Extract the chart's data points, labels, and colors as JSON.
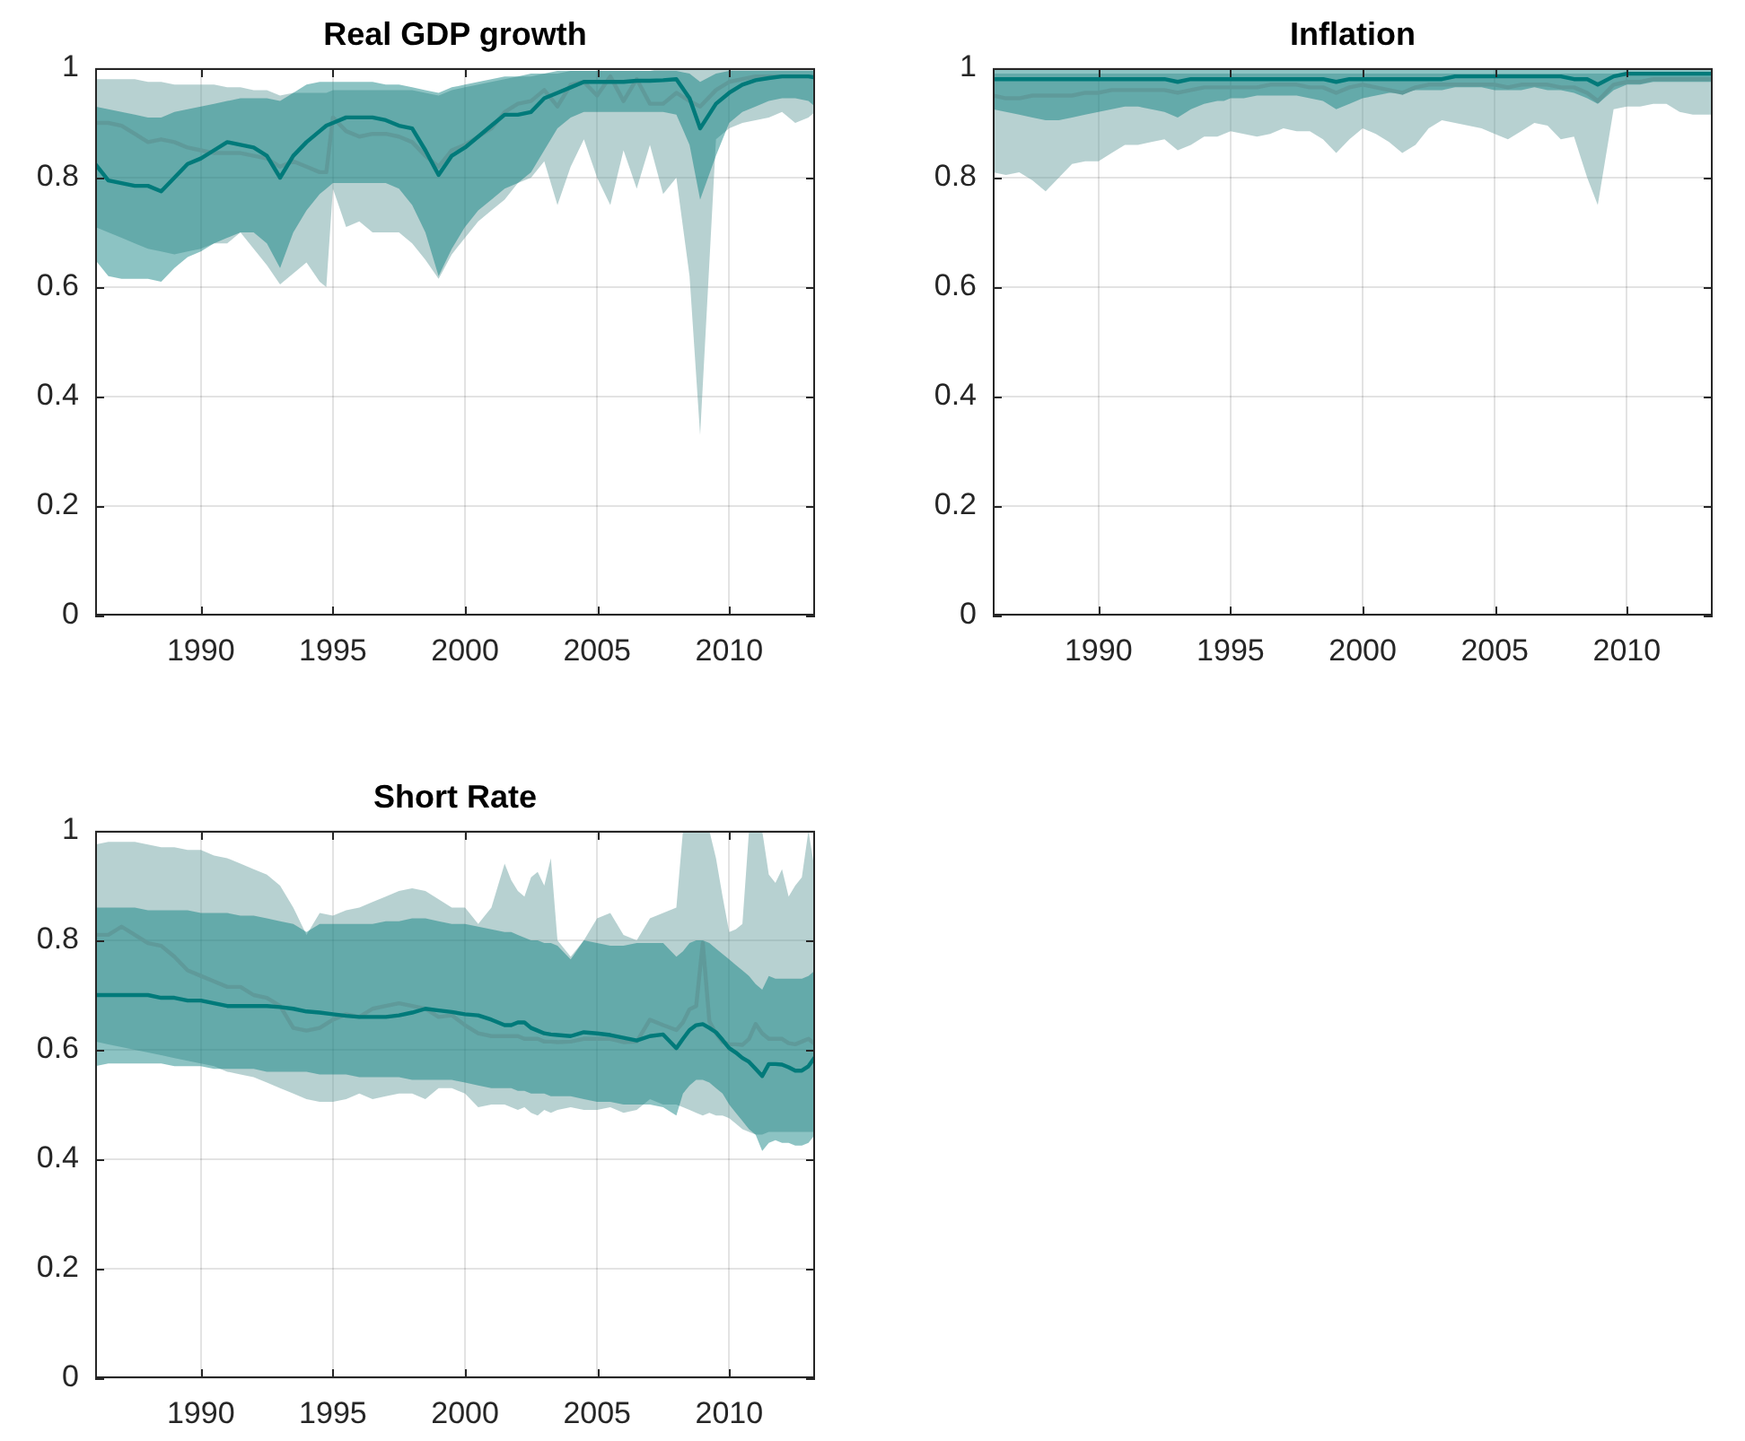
{
  "chart_data": [
    {
      "type": "line",
      "title": "Real GDP growth",
      "xlim": [
        1986,
        2013.25
      ],
      "xticks": [
        1990,
        1995,
        2000,
        2005,
        2010
      ],
      "ylim": [
        0,
        1
      ],
      "yticks": [
        0,
        0.2,
        0.4,
        0.6,
        0.8,
        1
      ],
      "grid": true,
      "x": [
        1986,
        1986.5,
        1987,
        1987.5,
        1988,
        1988.5,
        1989,
        1989.5,
        1990,
        1990.5,
        1991,
        1991.5,
        1992,
        1992.5,
        1993,
        1993.5,
        1994,
        1994.5,
        1994.75,
        1995,
        1995.5,
        1996,
        1996.5,
        1997,
        1997.5,
        1998,
        1998.5,
        1999,
        1999.5,
        2000,
        2000.5,
        2001,
        2001.5,
        2002,
        2002.5,
        2003,
        2003.5,
        2004,
        2004.5,
        2005,
        2005.5,
        2006,
        2006.5,
        2007,
        2007.5,
        2008,
        2008.5,
        2008.9,
        2009.5,
        2010,
        2010.5,
        2011,
        2011.5,
        2012,
        2012.5,
        2013,
        2013.25
      ],
      "series": [
        {
          "type": "line",
          "color": "#5f9a9a",
          "values": [
            0.9,
            0.9,
            0.895,
            0.88,
            0.865,
            0.87,
            0.865,
            0.855,
            0.85,
            0.845,
            0.845,
            0.845,
            0.84,
            0.835,
            0.82,
            0.83,
            0.82,
            0.81,
            0.81,
            0.91,
            0.885,
            0.875,
            0.88,
            0.88,
            0.875,
            0.865,
            0.84,
            0.82,
            0.85,
            0.86,
            0.875,
            0.89,
            0.92,
            0.935,
            0.94,
            0.96,
            0.93,
            0.97,
            0.975,
            0.95,
            0.985,
            0.94,
            0.98,
            0.935,
            0.935,
            0.955,
            0.94,
            0.93,
            0.96,
            0.975,
            0.98,
            0.985,
            0.985,
            0.985,
            0.985,
            0.985,
            0.985
          ],
          "lower": [
            0.71,
            0.7,
            0.69,
            0.68,
            0.67,
            0.665,
            0.66,
            0.665,
            0.67,
            0.68,
            0.68,
            0.7,
            0.67,
            0.64,
            0.605,
            0.625,
            0.645,
            0.61,
            0.6,
            0.78,
            0.71,
            0.72,
            0.7,
            0.7,
            0.7,
            0.68,
            0.65,
            0.615,
            0.66,
            0.69,
            0.72,
            0.74,
            0.76,
            0.79,
            0.8,
            0.83,
            0.75,
            0.82,
            0.87,
            0.8,
            0.75,
            0.85,
            0.78,
            0.86,
            0.77,
            0.8,
            0.62,
            0.33,
            0.87,
            0.89,
            0.9,
            0.905,
            0.91,
            0.92,
            0.9,
            0.91,
            0.92
          ],
          "upper": [
            0.98,
            0.98,
            0.98,
            0.98,
            0.975,
            0.975,
            0.97,
            0.97,
            0.97,
            0.97,
            0.965,
            0.965,
            0.96,
            0.96,
            0.95,
            0.955,
            0.955,
            0.955,
            0.955,
            0.96,
            0.96,
            0.96,
            0.96,
            0.96,
            0.96,
            0.96,
            0.955,
            0.95,
            0.96,
            0.965,
            0.97,
            0.975,
            0.98,
            0.985,
            0.985,
            0.99,
            0.99,
            0.995,
            0.995,
            0.995,
            0.995,
            0.995,
            0.995,
            0.995,
            1,
            1,
            1,
            1,
            1,
            1,
            1,
            1,
            1,
            1,
            1,
            1,
            1
          ]
        },
        {
          "type": "line",
          "color": "#007a7a",
          "values": [
            0.825,
            0.795,
            0.79,
            0.785,
            0.785,
            0.775,
            0.8,
            0.825,
            0.835,
            0.85,
            0.865,
            0.86,
            0.855,
            0.84,
            0.8,
            0.84,
            0.865,
            0.885,
            0.895,
            0.9,
            0.91,
            0.91,
            0.91,
            0.905,
            0.895,
            0.89,
            0.85,
            0.805,
            0.84,
            0.855,
            0.875,
            0.895,
            0.915,
            0.915,
            0.92,
            0.945,
            0.955,
            0.965,
            0.975,
            0.975,
            0.975,
            0.975,
            0.977,
            0.977,
            0.978,
            0.98,
            0.945,
            0.89,
            0.935,
            0.955,
            0.97,
            0.978,
            0.982,
            0.985,
            0.985,
            0.985,
            0.983
          ],
          "lower": [
            0.65,
            0.62,
            0.615,
            0.615,
            0.615,
            0.61,
            0.635,
            0.655,
            0.665,
            0.68,
            0.69,
            0.7,
            0.7,
            0.68,
            0.635,
            0.7,
            0.74,
            0.77,
            0.78,
            0.79,
            0.79,
            0.79,
            0.79,
            0.79,
            0.78,
            0.75,
            0.7,
            0.62,
            0.67,
            0.71,
            0.74,
            0.76,
            0.78,
            0.79,
            0.81,
            0.85,
            0.89,
            0.91,
            0.92,
            0.92,
            0.92,
            0.92,
            0.92,
            0.92,
            0.92,
            0.915,
            0.86,
            0.76,
            0.84,
            0.9,
            0.92,
            0.93,
            0.94,
            0.945,
            0.945,
            0.94,
            0.93
          ],
          "upper": [
            0.93,
            0.925,
            0.92,
            0.915,
            0.91,
            0.91,
            0.92,
            0.925,
            0.93,
            0.935,
            0.94,
            0.945,
            0.945,
            0.945,
            0.94,
            0.955,
            0.97,
            0.975,
            0.975,
            0.975,
            0.975,
            0.975,
            0.975,
            0.97,
            0.97,
            0.965,
            0.96,
            0.955,
            0.965,
            0.97,
            0.975,
            0.98,
            0.985,
            0.985,
            0.99,
            0.99,
            0.995,
            0.995,
            0.995,
            0.995,
            0.995,
            0.995,
            0.995,
            0.995,
            0.995,
            0.995,
            0.99,
            0.975,
            0.99,
            0.995,
            0.995,
            0.995,
            0.995,
            0.995,
            0.995,
            0.995,
            0.995
          ]
        }
      ]
    },
    {
      "type": "line",
      "title": "Inflation",
      "xlim": [
        1986,
        2013.25
      ],
      "xticks": [
        1990,
        1995,
        2000,
        2005,
        2010
      ],
      "ylim": [
        0,
        1
      ],
      "yticks": [
        0,
        0.2,
        0.4,
        0.6,
        0.8,
        1
      ],
      "grid": true,
      "x": [
        1986,
        1986.5,
        1987,
        1987.5,
        1988,
        1988.5,
        1989,
        1989.5,
        1990,
        1990.5,
        1991,
        1991.5,
        1992,
        1992.5,
        1993,
        1993.5,
        1994,
        1994.5,
        1994.75,
        1995,
        1995.5,
        1996,
        1996.5,
        1997,
        1997.5,
        1998,
        1998.5,
        1999,
        1999.5,
        2000,
        2000.5,
        2001,
        2001.5,
        2002,
        2002.5,
        2003,
        2003.5,
        2004,
        2004.5,
        2005,
        2005.5,
        2006,
        2006.5,
        2007,
        2007.5,
        2008,
        2008.5,
        2008.9,
        2009.5,
        2010,
        2010.5,
        2011,
        2011.5,
        2012,
        2012.5,
        2013,
        2013.25
      ],
      "series": [
        {
          "type": "line",
          "color": "#5f9a9a",
          "values": [
            0.95,
            0.945,
            0.945,
            0.95,
            0.95,
            0.95,
            0.95,
            0.955,
            0.955,
            0.96,
            0.96,
            0.96,
            0.96,
            0.96,
            0.955,
            0.96,
            0.965,
            0.965,
            0.965,
            0.965,
            0.965,
            0.965,
            0.97,
            0.97,
            0.97,
            0.965,
            0.965,
            0.955,
            0.965,
            0.97,
            0.965,
            0.96,
            0.955,
            0.965,
            0.97,
            0.97,
            0.97,
            0.97,
            0.97,
            0.97,
            0.965,
            0.97,
            0.97,
            0.97,
            0.965,
            0.965,
            0.955,
            0.94,
            0.97,
            0.975,
            0.975,
            0.98,
            0.98,
            0.98,
            0.98,
            0.98,
            0.98
          ],
          "lower": [
            0.81,
            0.805,
            0.81,
            0.795,
            0.775,
            0.8,
            0.825,
            0.83,
            0.83,
            0.845,
            0.86,
            0.86,
            0.865,
            0.87,
            0.85,
            0.86,
            0.875,
            0.875,
            0.88,
            0.885,
            0.88,
            0.875,
            0.88,
            0.89,
            0.885,
            0.885,
            0.87,
            0.845,
            0.87,
            0.89,
            0.88,
            0.865,
            0.845,
            0.86,
            0.89,
            0.905,
            0.9,
            0.895,
            0.89,
            0.88,
            0.87,
            0.885,
            0.9,
            0.895,
            0.87,
            0.875,
            0.8,
            0.75,
            0.925,
            0.93,
            0.93,
            0.935,
            0.935,
            0.92,
            0.915,
            0.915,
            0.915
          ],
          "upper": [
            0.99,
            0.99,
            0.99,
            0.99,
            0.99,
            0.99,
            0.99,
            0.99,
            0.99,
            0.99,
            0.99,
            0.99,
            0.99,
            0.99,
            0.99,
            0.99,
            0.99,
            0.99,
            0.99,
            0.99,
            0.99,
            0.99,
            0.99,
            0.99,
            0.99,
            0.99,
            0.99,
            0.99,
            0.99,
            0.99,
            0.99,
            0.99,
            0.99,
            0.99,
            0.99,
            0.99,
            0.99,
            0.99,
            0.99,
            0.99,
            0.99,
            0.99,
            0.99,
            0.99,
            0.99,
            0.99,
            0.99,
            0.99,
            0.99,
            0.99,
            0.99,
            0.99,
            0.99,
            0.99,
            0.99,
            0.99,
            0.99
          ]
        },
        {
          "type": "line",
          "color": "#007a7a",
          "values": [
            0.98,
            0.98,
            0.98,
            0.98,
            0.98,
            0.98,
            0.98,
            0.98,
            0.98,
            0.98,
            0.98,
            0.98,
            0.98,
            0.98,
            0.975,
            0.98,
            0.98,
            0.98,
            0.98,
            0.98,
            0.98,
            0.98,
            0.98,
            0.98,
            0.98,
            0.98,
            0.98,
            0.975,
            0.98,
            0.98,
            0.98,
            0.98,
            0.98,
            0.98,
            0.98,
            0.98,
            0.985,
            0.985,
            0.985,
            0.985,
            0.985,
            0.985,
            0.985,
            0.985,
            0.985,
            0.98,
            0.98,
            0.97,
            0.985,
            0.99,
            0.99,
            0.99,
            0.99,
            0.99,
            0.99,
            0.99,
            0.99
          ],
          "lower": [
            0.925,
            0.92,
            0.915,
            0.91,
            0.905,
            0.905,
            0.91,
            0.915,
            0.92,
            0.925,
            0.93,
            0.93,
            0.925,
            0.92,
            0.91,
            0.925,
            0.935,
            0.94,
            0.94,
            0.945,
            0.945,
            0.95,
            0.95,
            0.95,
            0.95,
            0.945,
            0.94,
            0.925,
            0.935,
            0.945,
            0.95,
            0.955,
            0.955,
            0.96,
            0.96,
            0.96,
            0.965,
            0.965,
            0.965,
            0.96,
            0.96,
            0.96,
            0.965,
            0.96,
            0.96,
            0.955,
            0.945,
            0.935,
            0.96,
            0.97,
            0.97,
            0.975,
            0.975,
            0.975,
            0.975,
            0.975,
            0.975
          ],
          "upper": [
            1,
            1,
            1,
            1,
            1,
            1,
            1,
            1,
            1,
            1,
            1,
            1,
            1,
            1,
            1,
            1,
            1,
            1,
            1,
            1,
            1,
            1,
            1,
            1,
            1,
            1,
            1,
            1,
            1,
            1,
            1,
            1,
            1,
            1,
            1,
            1,
            1,
            1,
            1,
            1,
            1,
            1,
            1,
            1,
            1,
            1,
            1,
            1,
            1,
            1,
            1,
            1,
            1,
            1,
            1,
            1,
            1
          ]
        }
      ]
    },
    {
      "type": "line",
      "title": "Short Rate",
      "xlim": [
        1986,
        2013.25
      ],
      "xticks": [
        1990,
        1995,
        2000,
        2005,
        2010
      ],
      "ylim": [
        0,
        1
      ],
      "yticks": [
        0,
        0.2,
        0.4,
        0.6,
        0.8,
        1
      ],
      "grid": true,
      "x": [
        1986,
        1986.5,
        1987,
        1987.5,
        1988,
        1988.5,
        1989,
        1989.5,
        1990,
        1990.5,
        1991,
        1991.5,
        1992,
        1992.5,
        1993,
        1993.5,
        1994,
        1994.5,
        1995,
        1995.5,
        1996,
        1996.5,
        1997,
        1997.5,
        1998,
        1998.5,
        1999,
        1999.5,
        2000,
        2000.5,
        2001,
        2001.5,
        2001.75,
        2002,
        2002.25,
        2002.5,
        2002.75,
        2003,
        2003.25,
        2003.5,
        2004,
        2004.5,
        2005,
        2005.5,
        2006,
        2006.5,
        2007,
        2007.5,
        2008,
        2008.25,
        2008.5,
        2008.75,
        2009,
        2009.25,
        2009.5,
        2009.75,
        2010,
        2010.25,
        2010.5,
        2010.75,
        2011,
        2011.25,
        2011.5,
        2011.75,
        2012,
        2012.25,
        2012.5,
        2012.75,
        2013,
        2013.25
      ],
      "series": [
        {
          "type": "line",
          "color": "#5f9a9a",
          "values": [
            0.81,
            0.81,
            0.825,
            0.81,
            0.795,
            0.79,
            0.77,
            0.745,
            0.735,
            0.725,
            0.715,
            0.715,
            0.7,
            0.695,
            0.68,
            0.64,
            0.635,
            0.64,
            0.655,
            0.665,
            0.66,
            0.675,
            0.68,
            0.685,
            0.68,
            0.675,
            0.66,
            0.663,
            0.645,
            0.63,
            0.625,
            0.625,
            0.625,
            0.625,
            0.62,
            0.62,
            0.62,
            0.615,
            0.615,
            0.614,
            0.615,
            0.62,
            0.62,
            0.62,
            0.614,
            0.615,
            0.655,
            0.645,
            0.636,
            0.65,
            0.674,
            0.68,
            0.795,
            0.652,
            0.63,
            0.614,
            0.61,
            0.61,
            0.609,
            0.62,
            0.647,
            0.63,
            0.62,
            0.62,
            0.62,
            0.612,
            0.61,
            0.615,
            0.62,
            0.61
          ],
          "lower": [
            0.615,
            0.61,
            0.605,
            0.6,
            0.595,
            0.59,
            0.585,
            0.58,
            0.575,
            0.57,
            0.56,
            0.555,
            0.55,
            0.54,
            0.53,
            0.52,
            0.51,
            0.505,
            0.505,
            0.51,
            0.52,
            0.51,
            0.515,
            0.52,
            0.52,
            0.51,
            0.53,
            0.53,
            0.52,
            0.495,
            0.5,
            0.5,
            0.495,
            0.49,
            0.495,
            0.485,
            0.48,
            0.49,
            0.485,
            0.49,
            0.495,
            0.49,
            0.49,
            0.495,
            0.485,
            0.49,
            0.51,
            0.5,
            0.5,
            0.495,
            0.49,
            0.485,
            0.48,
            0.485,
            0.48,
            0.48,
            0.475,
            0.465,
            0.455,
            0.45,
            0.445,
            0.445,
            0.45,
            0.45,
            0.45,
            0.45,
            0.45,
            0.45,
            0.45,
            0.45
          ],
          "upper": [
            0.975,
            0.98,
            0.98,
            0.98,
            0.975,
            0.97,
            0.97,
            0.965,
            0.965,
            0.955,
            0.95,
            0.94,
            0.93,
            0.92,
            0.9,
            0.86,
            0.81,
            0.85,
            0.845,
            0.855,
            0.86,
            0.87,
            0.88,
            0.89,
            0.895,
            0.89,
            0.875,
            0.86,
            0.86,
            0.83,
            0.86,
            0.94,
            0.91,
            0.89,
            0.88,
            0.915,
            0.925,
            0.9,
            0.95,
            0.8,
            0.77,
            0.8,
            0.84,
            0.85,
            0.81,
            0.8,
            0.84,
            0.85,
            0.86,
            1,
            1,
            1,
            1,
            1,
            0.95,
            0.88,
            0.815,
            0.82,
            0.83,
            1,
            1,
            1,
            0.92,
            0.905,
            0.93,
            0.88,
            0.9,
            0.915,
            1,
            0.925
          ]
        },
        {
          "type": "line",
          "color": "#007a7a",
          "values": [
            0.7,
            0.7,
            0.7,
            0.7,
            0.7,
            0.695,
            0.695,
            0.69,
            0.69,
            0.685,
            0.68,
            0.68,
            0.68,
            0.68,
            0.678,
            0.675,
            0.67,
            0.668,
            0.665,
            0.662,
            0.66,
            0.66,
            0.66,
            0.663,
            0.668,
            0.675,
            0.672,
            0.669,
            0.665,
            0.663,
            0.655,
            0.645,
            0.645,
            0.65,
            0.65,
            0.64,
            0.635,
            0.63,
            0.628,
            0.627,
            0.625,
            0.632,
            0.63,
            0.627,
            0.622,
            0.617,
            0.625,
            0.628,
            0.603,
            0.62,
            0.636,
            0.645,
            0.647,
            0.64,
            0.632,
            0.618,
            0.603,
            0.595,
            0.585,
            0.578,
            0.565,
            0.552,
            0.574,
            0.574,
            0.573,
            0.568,
            0.562,
            0.562,
            0.57,
            0.587
          ],
          "lower": [
            0.57,
            0.575,
            0.575,
            0.575,
            0.575,
            0.575,
            0.57,
            0.57,
            0.57,
            0.565,
            0.565,
            0.565,
            0.565,
            0.56,
            0.56,
            0.56,
            0.56,
            0.555,
            0.555,
            0.555,
            0.55,
            0.55,
            0.55,
            0.55,
            0.545,
            0.545,
            0.545,
            0.545,
            0.54,
            0.535,
            0.53,
            0.53,
            0.53,
            0.525,
            0.525,
            0.52,
            0.52,
            0.52,
            0.515,
            0.515,
            0.515,
            0.51,
            0.505,
            0.505,
            0.5,
            0.5,
            0.5,
            0.495,
            0.48,
            0.52,
            0.535,
            0.545,
            0.545,
            0.54,
            0.53,
            0.52,
            0.5,
            0.485,
            0.47,
            0.455,
            0.445,
            0.415,
            0.43,
            0.435,
            0.43,
            0.43,
            0.425,
            0.425,
            0.43,
            0.445
          ],
          "upper": [
            0.86,
            0.86,
            0.86,
            0.86,
            0.855,
            0.855,
            0.855,
            0.855,
            0.85,
            0.85,
            0.85,
            0.845,
            0.845,
            0.84,
            0.835,
            0.83,
            0.815,
            0.83,
            0.83,
            0.83,
            0.83,
            0.83,
            0.835,
            0.835,
            0.84,
            0.84,
            0.835,
            0.83,
            0.83,
            0.825,
            0.82,
            0.815,
            0.815,
            0.81,
            0.805,
            0.8,
            0.8,
            0.795,
            0.795,
            0.79,
            0.765,
            0.8,
            0.795,
            0.79,
            0.79,
            0.795,
            0.795,
            0.795,
            0.77,
            0.78,
            0.795,
            0.8,
            0.8,
            0.795,
            0.785,
            0.775,
            0.765,
            0.755,
            0.745,
            0.735,
            0.72,
            0.71,
            0.735,
            0.73,
            0.73,
            0.73,
            0.73,
            0.73,
            0.735,
            0.745
          ]
        }
      ]
    }
  ]
}
